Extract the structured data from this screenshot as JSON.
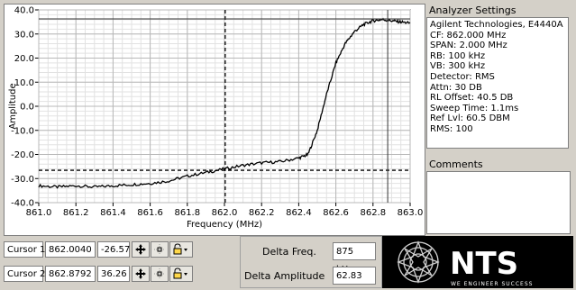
{
  "chart": {
    "ylabel": "Amplitude",
    "xlabel": "Frequency (MHz)",
    "y_ticks": [
      "40.0",
      "30.0",
      "20.0",
      "10.0",
      "0.0",
      "-10.0",
      "-20.0",
      "-30.0",
      "-40.0"
    ],
    "x_ticks": [
      "861.0",
      "861.2",
      "861.4",
      "861.6",
      "861.8",
      "862.0",
      "862.2",
      "862.4",
      "862.6",
      "862.8",
      "863.0"
    ]
  },
  "chart_data": {
    "type": "line",
    "xlabel": "Frequency (MHz)",
    "ylabel": "Amplitude",
    "xlim": [
      861.0,
      863.0
    ],
    "ylim": [
      -40,
      40
    ],
    "grid": true,
    "series": [
      {
        "color": "#000000",
        "x": [
          861.0,
          861.1,
          861.2,
          861.3,
          861.4,
          861.5,
          861.6,
          861.7,
          861.8,
          861.9,
          862.0,
          862.1,
          862.2,
          862.3,
          862.4,
          862.45,
          862.5,
          862.55,
          862.6,
          862.65,
          862.7,
          862.75,
          862.8,
          862.85,
          862.9,
          862.95,
          863.0
        ],
        "y": [
          -33,
          -33.5,
          -33,
          -33.5,
          -33,
          -32.5,
          -32,
          -31,
          -29,
          -27.5,
          -26,
          -24.5,
          -23.5,
          -23,
          -21.5,
          -20,
          -10,
          5,
          18,
          26,
          31,
          34,
          35.5,
          36,
          35.5,
          35,
          34.5
        ]
      }
    ],
    "markers": {
      "cursor1": {
        "x": 862.004,
        "y": -26.57
      },
      "cursor2": {
        "x": 862.8792,
        "y": 36.26
      }
    }
  },
  "settings": {
    "title": "Analyzer Settings",
    "lines": [
      "Agilent Technologies, E4440A",
      "CF: 862.000 MHz",
      "SPAN: 2.000 MHz",
      "RB: 100 kHz",
      "VB: 300 kHz",
      "Detector: RMS",
      "Attn: 30 DB",
      "RL Offset: 40.5 DB",
      "Sweep Time: 1.1ms",
      "Ref Lvl: 60.5 DBM",
      "RMS: 100"
    ]
  },
  "comments": {
    "title": "Comments",
    "text": ""
  },
  "cursors": [
    {
      "label": "Cursor 1",
      "x": "862.0040",
      "y": "-26.57"
    },
    {
      "label": "Cursor 2",
      "x": "862.8792",
      "y": "36.26"
    }
  ],
  "delta": {
    "freq_label": "Delta Freq.",
    "freq_value": "875 kHz",
    "amp_label": "Delta Amplitude",
    "amp_value": "62.83"
  },
  "logo": {
    "name": "NTS",
    "tagline": "WE ENGINEER SUCCESS"
  },
  "icons": {
    "move": "move-cursor-icon",
    "crosshair": "crosshair-icon",
    "lock": "lock-icon"
  }
}
